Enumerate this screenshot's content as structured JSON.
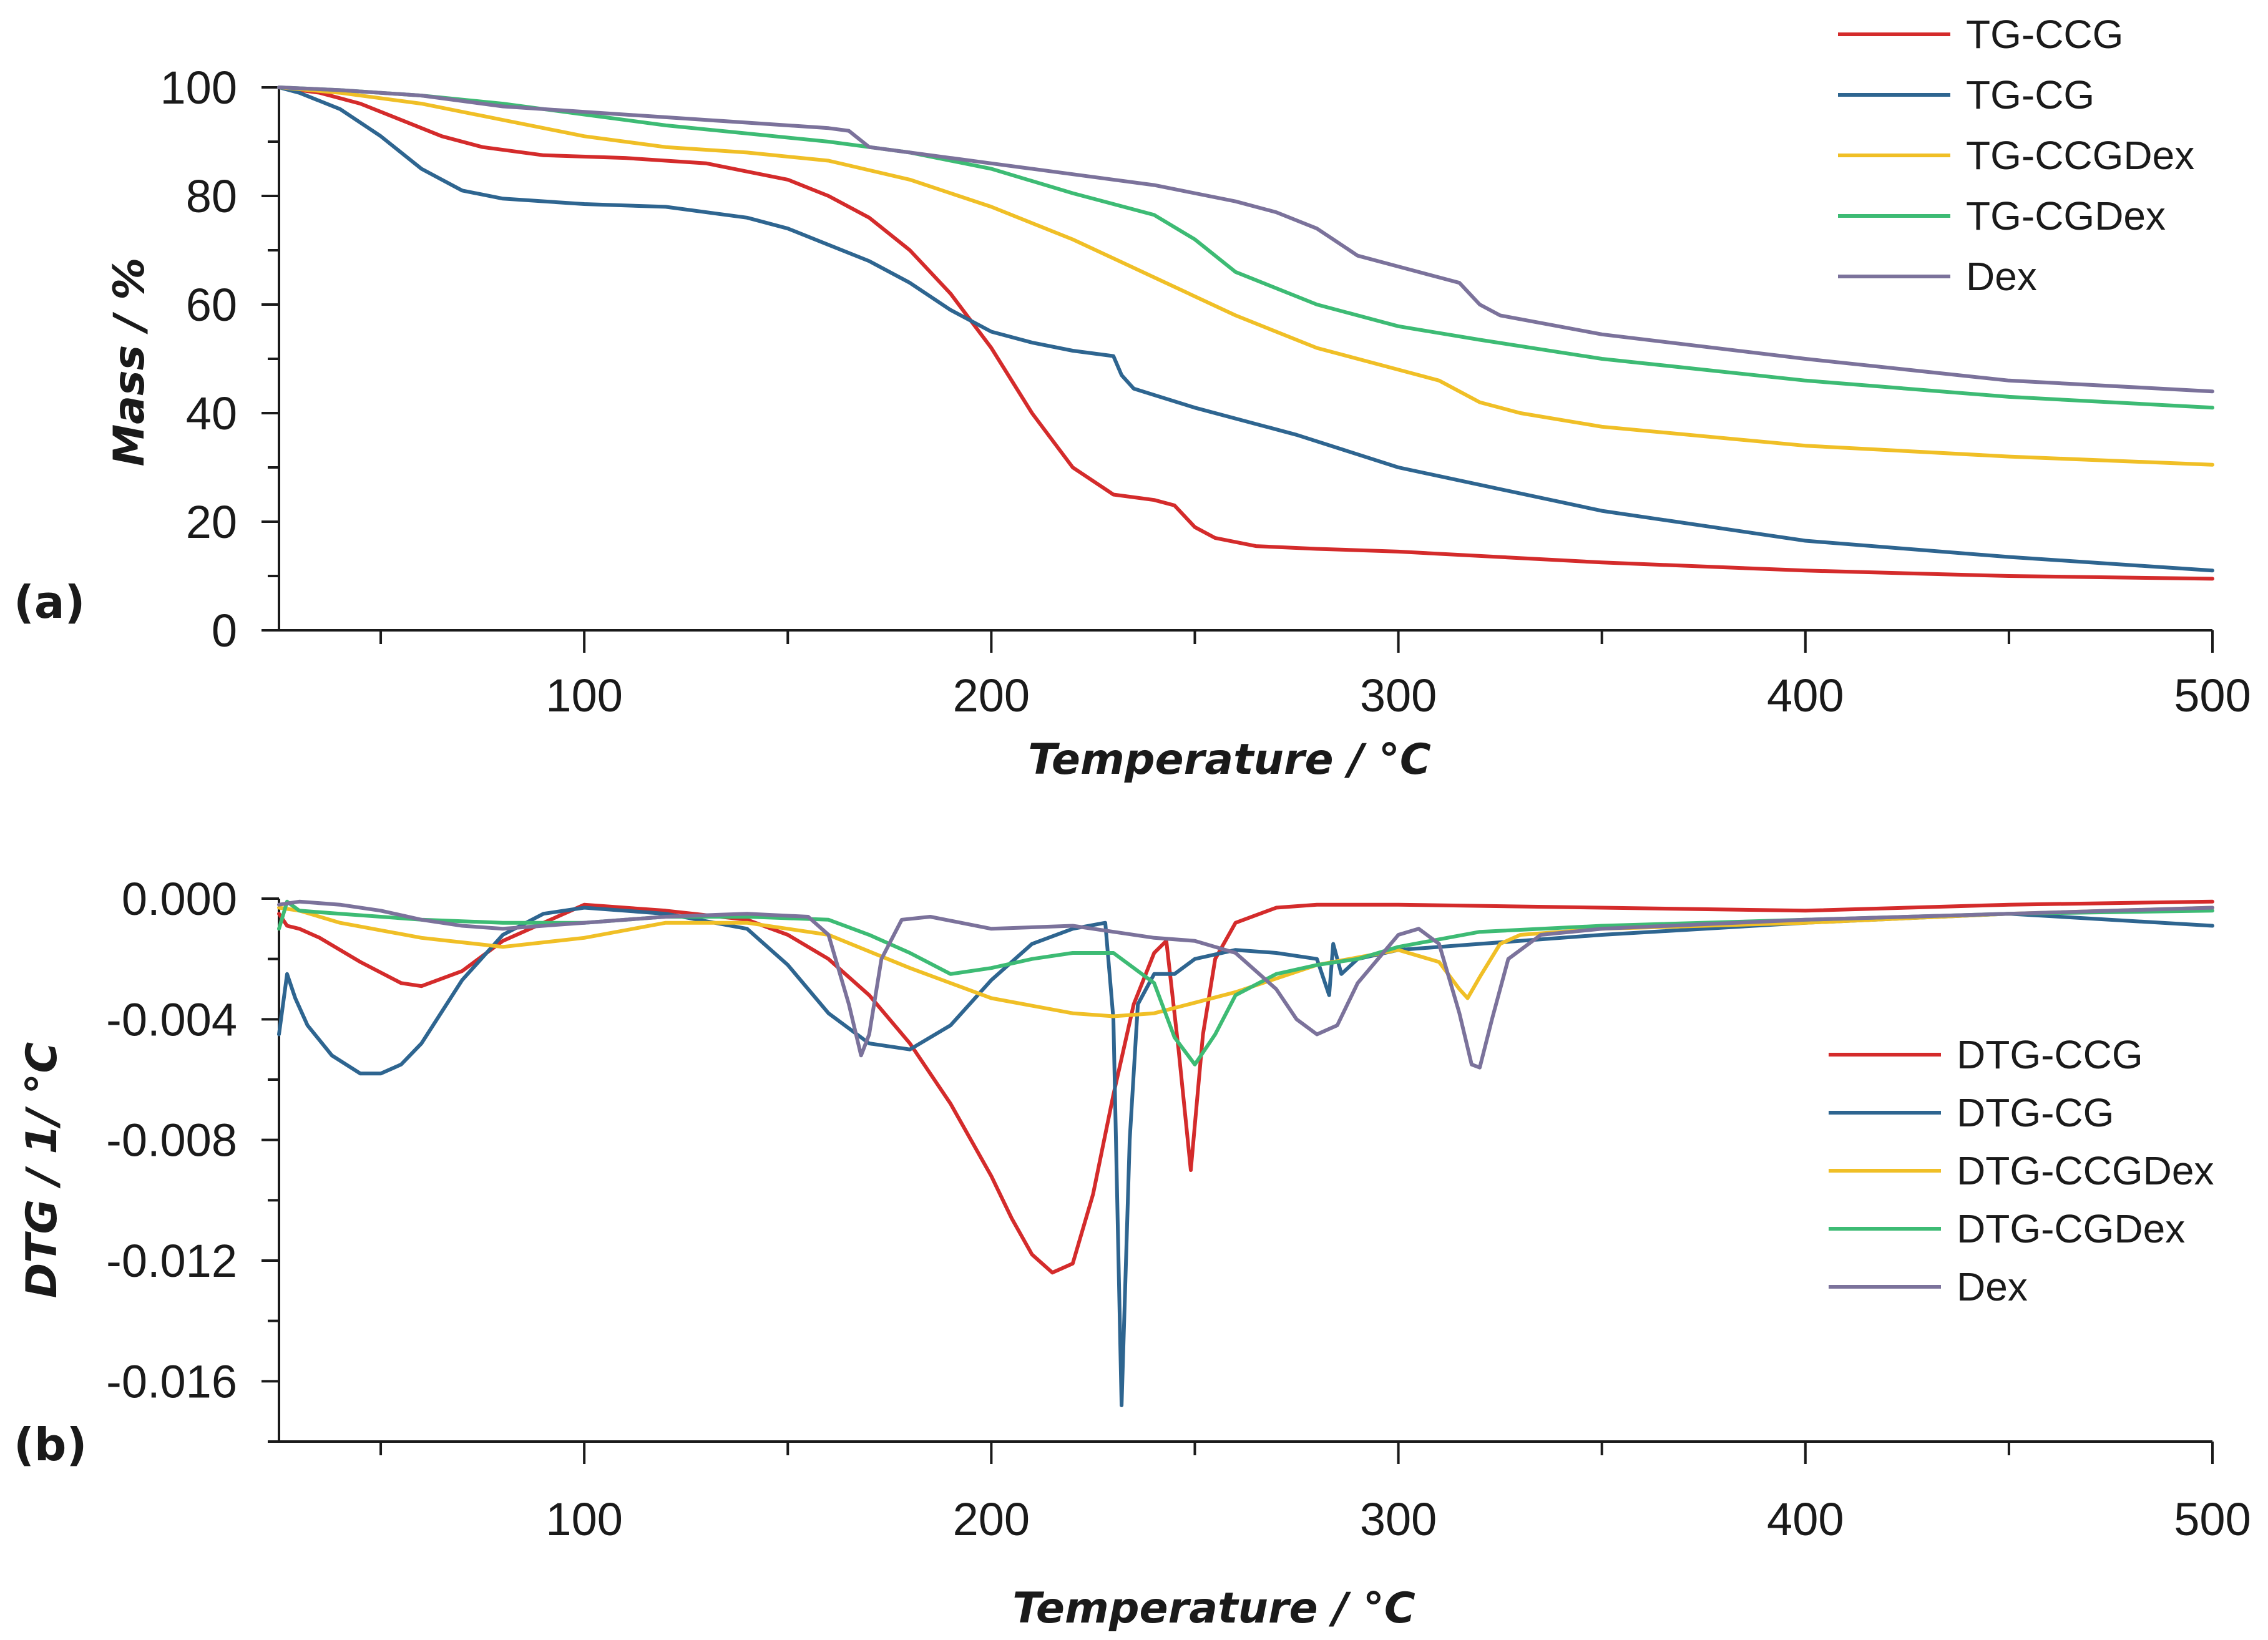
{
  "chart_data": [
    {
      "panel": "(a)",
      "type": "line",
      "xlabel": "Temperature / °C",
      "ylabel": "Mass / %",
      "xlim": [
        25,
        500
      ],
      "ylim": [
        0,
        100
      ],
      "xticks": [
        100,
        200,
        300,
        400,
        500
      ],
      "xtick_labels": [
        "100",
        "200",
        "300",
        "400",
        "500"
      ],
      "yticks": [
        0,
        20,
        40,
        60,
        80,
        100
      ],
      "ytick_labels": [
        "0",
        "20",
        "40",
        "60",
        "80",
        "100"
      ],
      "legend_position": "top-right",
      "series": [
        {
          "name": "TG-CCG",
          "color": "#d42b2b",
          "x": [
            25,
            35,
            45,
            55,
            65,
            75,
            90,
            110,
            130,
            150,
            160,
            170,
            180,
            190,
            200,
            210,
            220,
            230,
            240,
            245,
            250,
            255,
            265,
            280,
            300,
            350,
            400,
            450,
            500
          ],
          "y": [
            100,
            99,
            97,
            94,
            91,
            89,
            87.5,
            87,
            86,
            83,
            80,
            76,
            70,
            62,
            52,
            40,
            30,
            25,
            24,
            23,
            19,
            17,
            15.5,
            15,
            14.5,
            12.5,
            11,
            10,
            9.5
          ]
        },
        {
          "name": "TG-CG",
          "color": "#2e6590",
          "x": [
            25,
            30,
            40,
            50,
            60,
            70,
            80,
            100,
            120,
            140,
            150,
            160,
            170,
            180,
            190,
            200,
            210,
            220,
            230,
            232,
            235,
            250,
            275,
            300,
            350,
            400,
            450,
            500
          ],
          "y": [
            100,
            99,
            96,
            91,
            85,
            81,
            79.5,
            78.5,
            78,
            76,
            74,
            71,
            68,
            64,
            59,
            55,
            53,
            51.5,
            50.5,
            47,
            44.5,
            41,
            36,
            30,
            22,
            16.5,
            13.5,
            11
          ]
        },
        {
          "name": "TG-CCGDex",
          "color": "#f0bf26",
          "x": [
            25,
            40,
            60,
            80,
            100,
            120,
            140,
            160,
            180,
            200,
            220,
            240,
            260,
            280,
            300,
            310,
            320,
            330,
            350,
            400,
            450,
            500
          ],
          "y": [
            100,
            99,
            97,
            94,
            91,
            89,
            88,
            86.5,
            83,
            78,
            72,
            65,
            58,
            52,
            48,
            46,
            42,
            40,
            37.5,
            34,
            32,
            30.5
          ]
        },
        {
          "name": "TG-CGDex",
          "color": "#3dbb74",
          "x": [
            25,
            40,
            60,
            80,
            100,
            120,
            140,
            160,
            180,
            200,
            220,
            240,
            250,
            260,
            280,
            300,
            320,
            350,
            400,
            450,
            500
          ],
          "y": [
            100,
            99.5,
            98.5,
            97,
            95,
            93,
            91.5,
            90,
            88,
            85,
            80.5,
            76.5,
            72,
            66,
            60,
            56,
            53.5,
            50,
            46,
            43,
            41
          ]
        },
        {
          "name": "Dex",
          "color": "#7b729b",
          "x": [
            25,
            40,
            60,
            80,
            100,
            120,
            140,
            160,
            165,
            170,
            180,
            200,
            220,
            240,
            260,
            270,
            280,
            290,
            300,
            310,
            315,
            320,
            325,
            350,
            400,
            450,
            500
          ],
          "y": [
            100,
            99.5,
            98.5,
            96.5,
            95.5,
            94.5,
            93.5,
            92.5,
            92,
            89,
            88,
            86,
            84,
            82,
            79,
            77,
            74,
            69,
            67,
            65,
            64,
            60,
            58,
            54.5,
            50,
            46,
            44
          ]
        }
      ]
    },
    {
      "panel": "(b)",
      "type": "line",
      "xlabel": "Temperature / °C",
      "ylabel": "DTG /  1/ °C",
      "xlim": [
        25,
        500
      ],
      "ylim": [
        -0.018,
        0
      ],
      "xticks": [
        100,
        200,
        300,
        400,
        500
      ],
      "xtick_labels": [
        "100",
        "200",
        "300",
        "400",
        "500"
      ],
      "yticks": [
        0,
        -0.004,
        -0.008,
        -0.012,
        -0.016
      ],
      "ytick_labels": [
        "0.000",
        "-0.004",
        "-0.008",
        "-0.012",
        "-0.016"
      ],
      "legend_position": "right",
      "series": [
        {
          "name": "DTG-CCG",
          "color": "#d42b2b",
          "x": [
            25,
            27,
            30,
            35,
            45,
            55,
            60,
            70,
            80,
            100,
            120,
            140,
            150,
            160,
            170,
            180,
            190,
            200,
            205,
            210,
            215,
            220,
            225,
            230,
            235,
            240,
            243,
            246,
            249,
            252,
            255,
            260,
            270,
            280,
            300,
            350,
            400,
            450,
            500
          ],
          "y": [
            -0.0005,
            -0.0009,
            -0.001,
            -0.0013,
            -0.0021,
            -0.0028,
            -0.0029,
            -0.0024,
            -0.0014,
            -0.0002,
            -0.0004,
            -0.0007,
            -0.0012,
            -0.002,
            -0.0032,
            -0.0048,
            -0.0068,
            -0.0092,
            -0.0106,
            -0.0118,
            -0.0124,
            -0.0121,
            -0.0098,
            -0.0065,
            -0.0035,
            -0.0018,
            -0.0014,
            -0.005,
            -0.009,
            -0.0045,
            -0.002,
            -0.0008,
            -0.0003,
            -0.0002,
            -0.0002,
            -0.0003,
            -0.0004,
            -0.0002,
            -0.0001
          ]
        },
        {
          "name": "DTG-CG",
          "color": "#2e6590",
          "x": [
            25,
            27,
            29,
            32,
            38,
            45,
            50,
            55,
            60,
            70,
            80,
            90,
            100,
            120,
            140,
            150,
            160,
            170,
            180,
            190,
            200,
            210,
            220,
            228,
            230,
            232,
            234,
            236,
            240,
            245,
            250,
            260,
            270,
            280,
            283,
            284,
            286,
            290,
            300,
            320,
            350,
            400,
            450,
            500
          ],
          "y": [
            -0.0045,
            -0.0025,
            -0.0033,
            -0.0042,
            -0.0052,
            -0.0058,
            -0.0058,
            -0.0055,
            -0.0048,
            -0.0027,
            -0.0012,
            -0.0005,
            -0.0003,
            -0.0005,
            -0.001,
            -0.0022,
            -0.0038,
            -0.0048,
            -0.005,
            -0.0042,
            -0.0027,
            -0.0015,
            -0.001,
            -0.0008,
            -0.004,
            -0.0168,
            -0.008,
            -0.0035,
            -0.0025,
            -0.0025,
            -0.002,
            -0.0017,
            -0.0018,
            -0.002,
            -0.0032,
            -0.0015,
            -0.0025,
            -0.002,
            -0.0017,
            -0.0015,
            -0.0012,
            -0.0008,
            -0.0005,
            -0.0009
          ]
        },
        {
          "name": "DTG-CCGDex",
          "color": "#f0bf26",
          "x": [
            25,
            30,
            40,
            60,
            80,
            100,
            120,
            140,
            160,
            180,
            200,
            220,
            230,
            240,
            260,
            280,
            300,
            310,
            315,
            317,
            320,
            325,
            330,
            350,
            400,
            450,
            500
          ],
          "y": [
            -0.0003,
            -0.0004,
            -0.0008,
            -0.0013,
            -0.0016,
            -0.0013,
            -0.0008,
            -0.0008,
            -0.0012,
            -0.0023,
            -0.0033,
            -0.0038,
            -0.0039,
            -0.0038,
            -0.0031,
            -0.0022,
            -0.0017,
            -0.0021,
            -0.003,
            -0.0033,
            -0.0026,
            -0.0015,
            -0.0012,
            -0.001,
            -0.0008,
            -0.0005,
            -0.0003
          ]
        },
        {
          "name": "DTG-CGDex",
          "color": "#3dbb74",
          "x": [
            25,
            27,
            30,
            40,
            60,
            80,
            100,
            120,
            140,
            160,
            170,
            180,
            190,
            200,
            210,
            220,
            230,
            240,
            245,
            250,
            255,
            260,
            270,
            280,
            290,
            300,
            320,
            350,
            400,
            450,
            500
          ],
          "y": [
            -0.001,
            -0.0001,
            -0.0004,
            -0.0005,
            -0.0007,
            -0.0008,
            -0.0008,
            -0.0006,
            -0.0006,
            -0.0007,
            -0.0012,
            -0.0018,
            -0.0025,
            -0.0023,
            -0.002,
            -0.0018,
            -0.0018,
            -0.0028,
            -0.0046,
            -0.0055,
            -0.0045,
            -0.0032,
            -0.0025,
            -0.0022,
            -0.002,
            -0.0016,
            -0.0011,
            -0.0009,
            -0.0007,
            -0.0005,
            -0.0004
          ]
        },
        {
          "name": "Dex",
          "color": "#7b729b",
          "x": [
            25,
            30,
            40,
            50,
            60,
            70,
            80,
            100,
            120,
            140,
            155,
            160,
            165,
            168,
            170,
            173,
            178,
            185,
            200,
            220,
            240,
            250,
            260,
            270,
            275,
            280,
            285,
            290,
            300,
            305,
            310,
            315,
            318,
            320,
            323,
            327,
            335,
            350,
            400,
            450,
            500
          ],
          "y": [
            -0.0002,
            -0.0001,
            -0.0002,
            -0.0004,
            -0.0007,
            -0.0009,
            -0.001,
            -0.0008,
            -0.0006,
            -0.0005,
            -0.0006,
            -0.0012,
            -0.0035,
            -0.0052,
            -0.0045,
            -0.002,
            -0.0007,
            -0.0006,
            -0.001,
            -0.0009,
            -0.0013,
            -0.0014,
            -0.0018,
            -0.003,
            -0.004,
            -0.0045,
            -0.0042,
            -0.0028,
            -0.0012,
            -0.001,
            -0.0015,
            -0.0038,
            -0.0055,
            -0.0056,
            -0.004,
            -0.002,
            -0.0012,
            -0.001,
            -0.0007,
            -0.0005,
            -0.0003
          ]
        }
      ]
    }
  ]
}
